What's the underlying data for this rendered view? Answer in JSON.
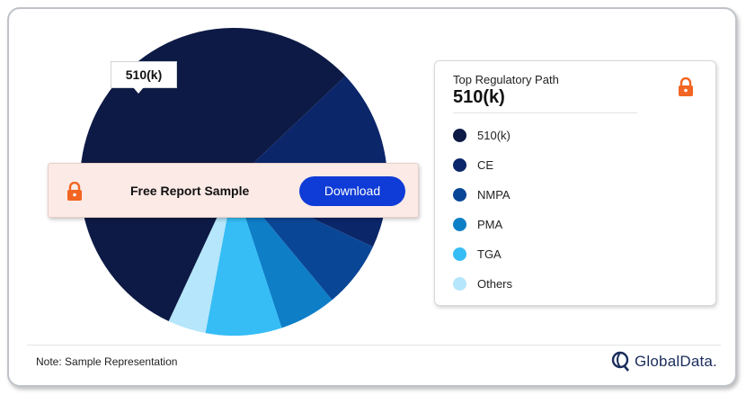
{
  "chart_data": {
    "type": "pie",
    "slices": [
      {
        "label": "510(k)",
        "value": 56,
        "color": "#0d1a45"
      },
      {
        "label": "CE",
        "value": 19,
        "color": "#0b2669"
      },
      {
        "label": "NMPA",
        "value": 7,
        "color": "#0a4696"
      },
      {
        "label": "PMA",
        "value": 6,
        "color": "#0e7ec7"
      },
      {
        "label": "TGA",
        "value": 8,
        "color": "#36bdf6"
      },
      {
        "label": "Others",
        "value": 4,
        "color": "#b5e6fb"
      }
    ],
    "callout_label": "510(k)"
  },
  "banner": {
    "title": "Free Report Sample",
    "download_label": "Download",
    "lock_icon": "lock-icon"
  },
  "legend": {
    "subtitle": "Top Regulatory Path",
    "value": "510(k)",
    "items": [
      {
        "label": "510(k)",
        "color": "#0d1a45"
      },
      {
        "label": "CE",
        "color": "#0b2669"
      },
      {
        "label": "NMPA",
        "color": "#0a4696"
      },
      {
        "label": "PMA",
        "color": "#0e7ec7"
      },
      {
        "label": "TGA",
        "color": "#36bdf6"
      },
      {
        "label": "Others",
        "color": "#b5e6fb"
      }
    ]
  },
  "footer": {
    "note": "Note: Sample Representation",
    "brand": "GlobalData."
  },
  "colors": {
    "accent_lock": "#f26522",
    "button": "#0f3bd6"
  }
}
